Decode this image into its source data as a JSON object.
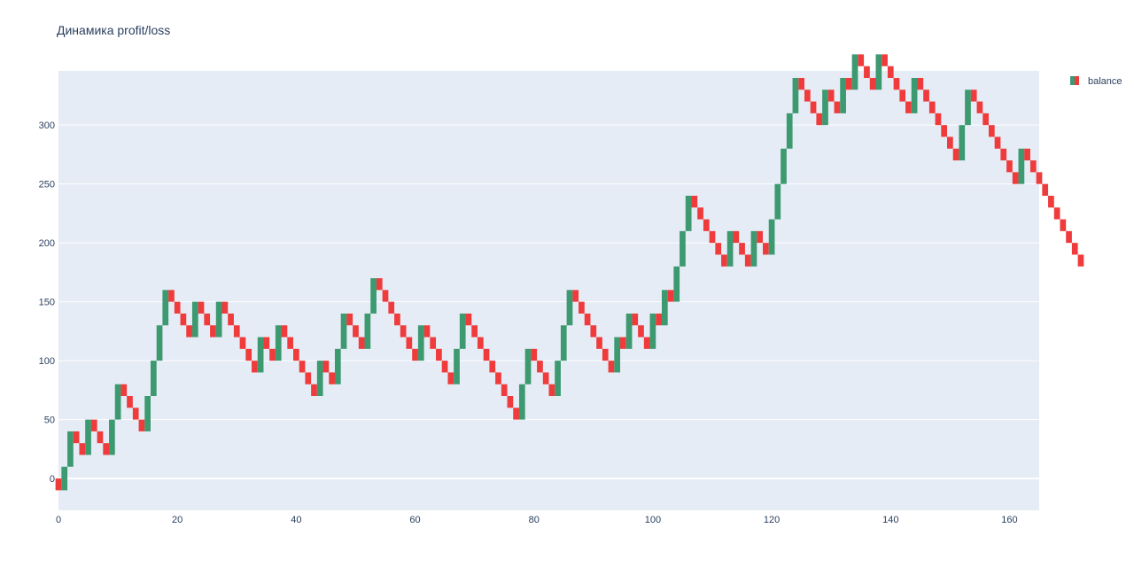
{
  "chart_data": {
    "type": "candlestick",
    "title": "Динамика profit/loss",
    "xlabel": "",
    "ylabel": "",
    "x_range": [
      0,
      165
    ],
    "y_range": [
      -27,
      346
    ],
    "x_ticks": [
      0,
      20,
      40,
      60,
      80,
      100,
      120,
      140,
      160
    ],
    "y_ticks": [
      0,
      50,
      100,
      150,
      200,
      250,
      300
    ],
    "grid": true,
    "legend_position": "top-right",
    "series": [
      {
        "name": "balance",
        "increasing_color": "#3d9970",
        "decreasing_color": "#ef3b3b",
        "step": 10,
        "start": 0,
        "moves": [
          -1,
          2,
          3,
          -1,
          -1,
          3,
          -1,
          -1,
          -1,
          3,
          3,
          -1,
          -1,
          -1,
          -1,
          3,
          3,
          3,
          3,
          -1,
          -1,
          -1,
          -1,
          3,
          -1,
          -1,
          -1,
          3,
          -1,
          -1,
          -1,
          -1,
          -1,
          -1,
          3,
          -1,
          -1,
          3,
          -1,
          -1,
          -1,
          -1,
          -1,
          -1,
          3,
          -1,
          -1,
          3,
          3,
          -1,
          -1,
          -1,
          3,
          3,
          -1,
          -1,
          -1,
          -1,
          -1,
          -1,
          -1,
          3,
          -1,
          -1,
          -1,
          -1,
          -1,
          3,
          3,
          -1,
          -1,
          -1,
          -1,
          -1,
          -1,
          -1,
          -1,
          -1,
          3,
          3,
          -1,
          -1,
          -1,
          -1,
          3,
          3,
          3,
          -1,
          -1,
          -1,
          -1,
          -1,
          -1,
          -1,
          3,
          -1,
          3,
          -1,
          -1,
          -1,
          3,
          -1,
          3,
          -1,
          3,
          3,
          3,
          -1,
          -1,
          -1,
          -1,
          -1,
          -1,
          3,
          -1,
          -1,
          -1,
          3,
          -1,
          -1,
          3,
          3,
          3,
          3,
          3,
          -1,
          -1,
          -1,
          -1,
          3,
          -1,
          -1,
          3,
          -1,
          3,
          -1,
          -1,
          -1,
          3,
          -1,
          -1,
          -1,
          -1,
          -1,
          3,
          -1,
          -1,
          -1,
          -1,
          -1,
          -1,
          -1,
          3,
          3,
          -1,
          -1,
          -1,
          -1,
          -1,
          -1,
          -1,
          -1,
          3,
          -1,
          -1,
          -1,
          -1,
          -1,
          -1,
          -1,
          -1,
          -1,
          -1
        ]
      }
    ]
  }
}
